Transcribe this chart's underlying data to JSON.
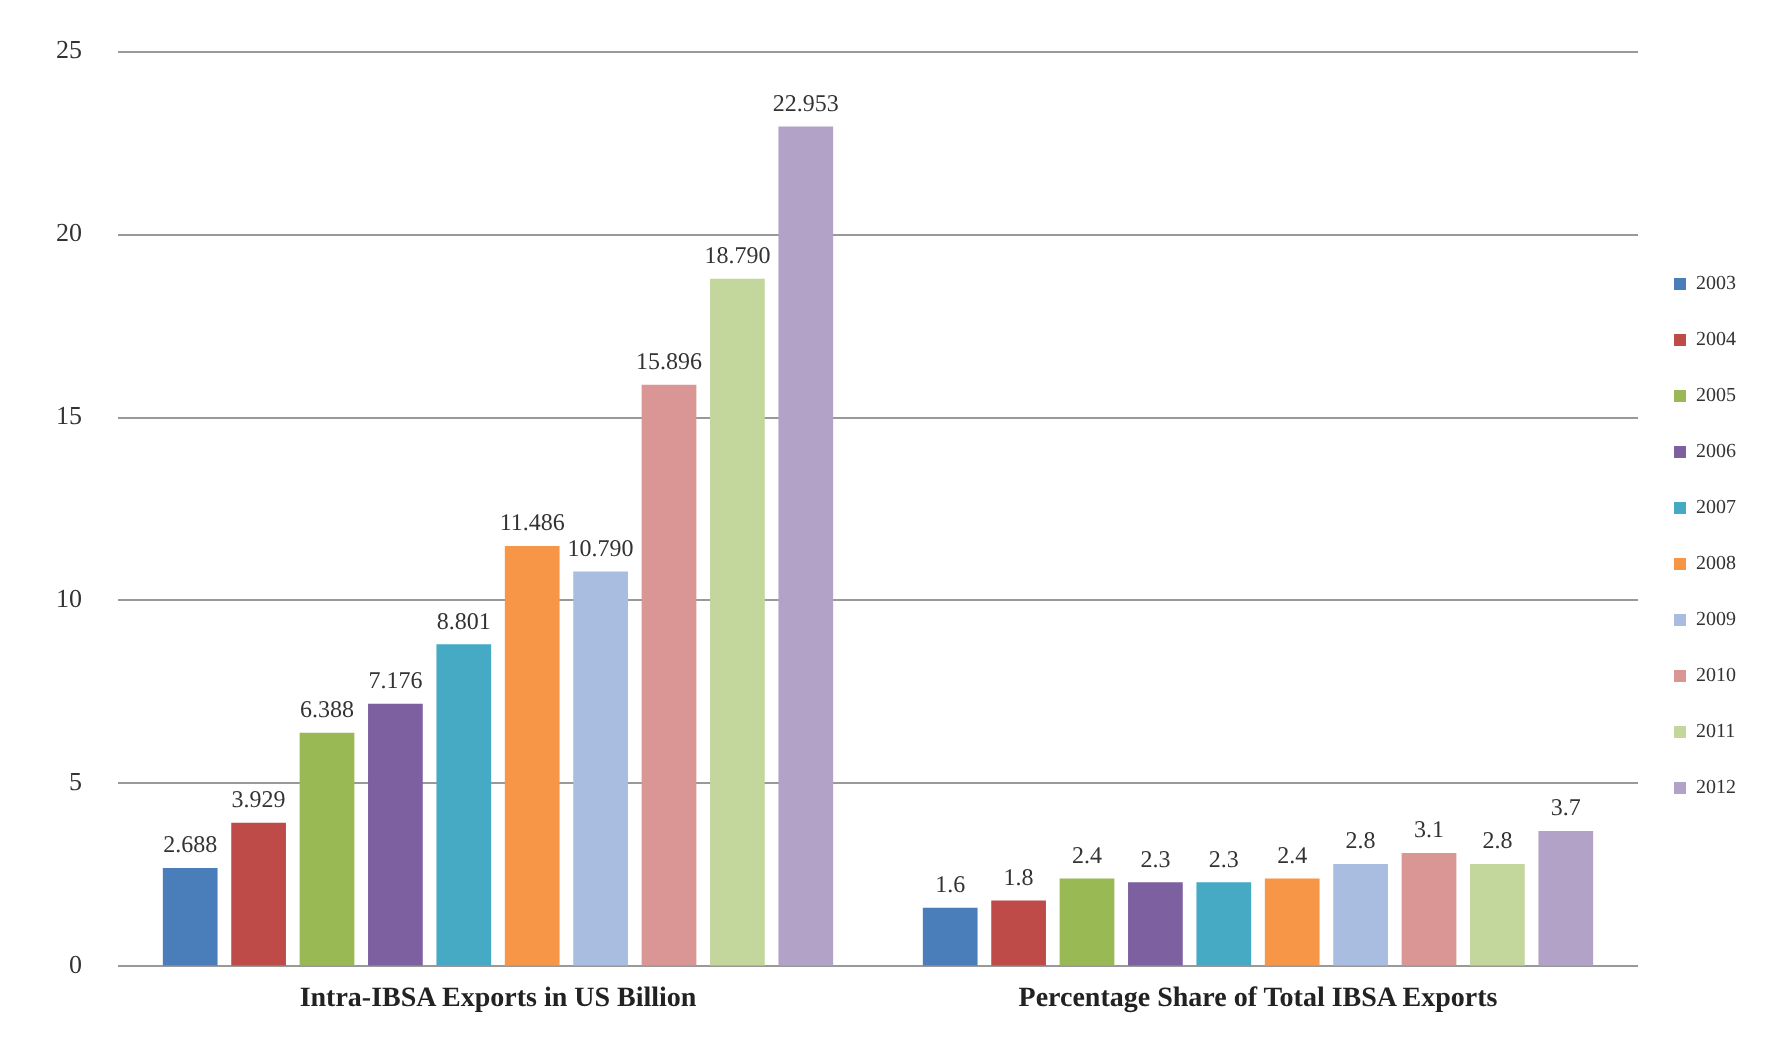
{
  "chart_data": {
    "type": "bar",
    "categories": [
      "Intra-IBSA Exports in US Billion",
      "Percentage Share of Total IBSA Exports"
    ],
    "ylim": [
      0,
      25
    ],
    "yticks": [
      0,
      5,
      10,
      15,
      20,
      25
    ],
    "grid": "y",
    "legend": "right",
    "series": [
      {
        "name": "2003",
        "color": "#4a7ebb",
        "values": [
          2.688,
          1.6
        ],
        "value_labels": [
          "2.688",
          "1.6"
        ]
      },
      {
        "name": "2004",
        "color": "#be4b48",
        "values": [
          3.929,
          1.8
        ],
        "value_labels": [
          "3.929",
          "1.8"
        ]
      },
      {
        "name": "2005",
        "color": "#98b954",
        "values": [
          6.388,
          2.4
        ],
        "value_labels": [
          "6.388",
          "2.4"
        ]
      },
      {
        "name": "2006",
        "color": "#7d60a0",
        "values": [
          7.176,
          2.3
        ],
        "value_labels": [
          "7.176",
          "2.3"
        ]
      },
      {
        "name": "2007",
        "color": "#46aac5",
        "values": [
          8.801,
          2.3
        ],
        "value_labels": [
          "8.801",
          "2.3"
        ]
      },
      {
        "name": "2008",
        "color": "#f79646",
        "values": [
          11.486,
          2.4
        ],
        "value_labels": [
          "11.486",
          "2.4"
        ]
      },
      {
        "name": "2009",
        "color": "#a9bde0",
        "values": [
          10.79,
          2.8
        ],
        "value_labels": [
          "10.790",
          "2.8"
        ]
      },
      {
        "name": "2010",
        "color": "#d99694",
        "values": [
          15.896,
          3.1
        ],
        "value_labels": [
          "15.896",
          "3.1"
        ]
      },
      {
        "name": "2011",
        "color": "#c3d69b",
        "values": [
          18.79,
          2.8
        ],
        "value_labels": [
          "18.790",
          "2.8"
        ]
      },
      {
        "name": "2012",
        "color": "#b3a2c7",
        "values": [
          22.953,
          3.7
        ],
        "value_labels": [
          "22.953",
          "3.7"
        ]
      }
    ]
  }
}
